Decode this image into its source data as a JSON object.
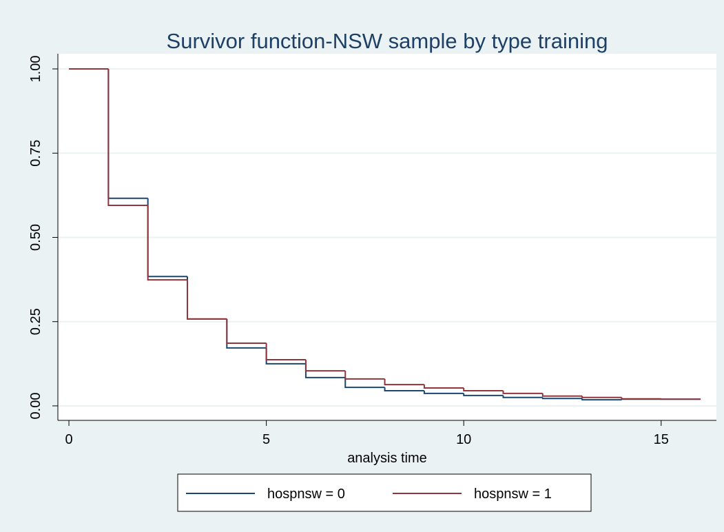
{
  "chart_data": {
    "type": "step",
    "title": "Survivor function-NSW sample by type training",
    "x_label": "analysis time",
    "x": [
      0,
      1,
      2,
      3,
      4,
      5,
      6,
      7,
      8,
      9,
      10,
      11,
      12,
      13,
      14,
      15,
      16
    ],
    "series": [
      {
        "name": "hospnsw = 0",
        "color": "#1a476f",
        "values": [
          1.0,
          0.616,
          0.384,
          0.258,
          0.172,
          0.125,
          0.084,
          0.055,
          0.045,
          0.037,
          0.031,
          0.025,
          0.022,
          0.018,
          0.02,
          0.02,
          0.02
        ]
      },
      {
        "name": "hospnsw = 1",
        "color": "#90353b",
        "values": [
          1.0,
          0.595,
          0.374,
          0.258,
          0.186,
          0.137,
          0.104,
          0.08,
          0.063,
          0.053,
          0.045,
          0.037,
          0.029,
          0.025,
          0.021,
          0.02,
          0.02
        ]
      }
    ],
    "xlim": [
      -0.28,
      16.4
    ],
    "ylim": [
      -0.043,
      1.045
    ],
    "xticks": [
      0,
      5,
      10,
      15
    ],
    "yticks": [
      {
        "value": 0,
        "label": "0.00"
      },
      {
        "value": 0.25,
        "label": "0.25"
      },
      {
        "value": 0.5,
        "label": "0.50"
      },
      {
        "value": 0.75,
        "label": "0.75"
      },
      {
        "value": 1,
        "label": "1.00"
      }
    ],
    "grid": true,
    "legend": "bottom"
  }
}
